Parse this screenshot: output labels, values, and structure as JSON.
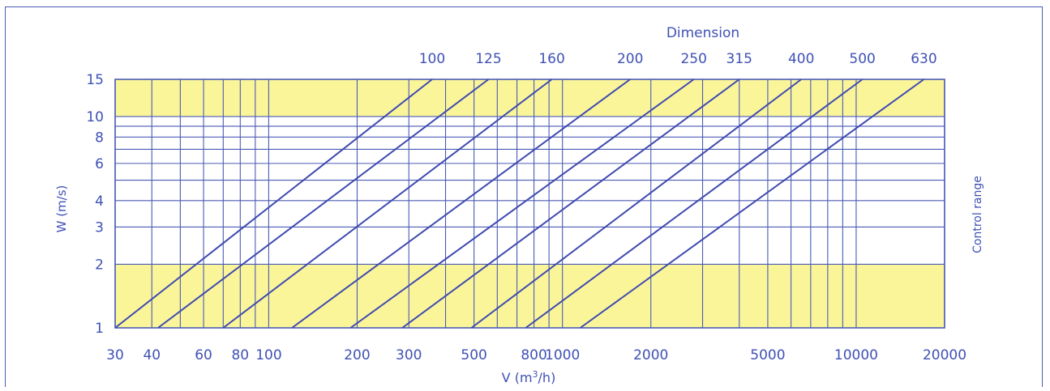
{
  "chart_data": {
    "type": "line",
    "title": "Dimension",
    "xlabel": "V (m³/h)",
    "ylabel": "W (m/s)",
    "right_label": "Control range",
    "x_scale": "log",
    "y_scale": "log",
    "xlim": [
      30,
      20000
    ],
    "ylim": [
      1,
      15
    ],
    "x_ticks": [
      {
        "value": 30,
        "label": "30"
      },
      {
        "value": 40,
        "label": "40"
      },
      {
        "value": 60,
        "label": "60"
      },
      {
        "value": 80,
        "label": "80"
      },
      {
        "value": 100,
        "label": "100"
      },
      {
        "value": 200,
        "label": "200"
      },
      {
        "value": 300,
        "label": "300"
      },
      {
        "value": 500,
        "label": "500"
      },
      {
        "value": 800,
        "label": "800"
      },
      {
        "value": 1000,
        "label": "1000"
      },
      {
        "value": 2000,
        "label": "2000"
      },
      {
        "value": 5000,
        "label": "5000"
      },
      {
        "value": 10000,
        "label": "10000"
      },
      {
        "value": 20000,
        "label": "20000"
      }
    ],
    "y_ticks": [
      {
        "value": 1,
        "label": "1"
      },
      {
        "value": 2,
        "label": "2"
      },
      {
        "value": 3,
        "label": "3"
      },
      {
        "value": 4,
        "label": "4"
      },
      {
        "value": 6,
        "label": "6"
      },
      {
        "value": 8,
        "label": "8"
      },
      {
        "value": 10,
        "label": "10"
      },
      {
        "value": 15,
        "label": "15"
      }
    ],
    "x_gridlines": [
      30,
      40,
      50,
      60,
      70,
      80,
      90,
      100,
      200,
      300,
      400,
      500,
      600,
      700,
      800,
      900,
      1000,
      2000,
      3000,
      4000,
      5000,
      6000,
      7000,
      8000,
      9000,
      10000,
      20000
    ],
    "y_gridlines": [
      1,
      2,
      3,
      4,
      5,
      6,
      7,
      8,
      9,
      10,
      15
    ],
    "shaded_bands": [
      {
        "y_from": 10,
        "y_to": 15,
        "color": "#fbf59a"
      },
      {
        "y_from": 1,
        "y_to": 2,
        "color": "#fbf59a"
      }
    ],
    "series": [
      {
        "name": "100",
        "x": [
          30,
          360
        ],
        "y": [
          1,
          15
        ]
      },
      {
        "name": "125",
        "x": [
          42,
          560
        ],
        "y": [
          1,
          15
        ]
      },
      {
        "name": "160",
        "x": [
          70,
          920
        ],
        "y": [
          1,
          15
        ]
      },
      {
        "name": "200",
        "x": [
          120,
          1700
        ],
        "y": [
          1,
          15
        ]
      },
      {
        "name": "250",
        "x": [
          190,
          2800
        ],
        "y": [
          1,
          15
        ]
      },
      {
        "name": "315",
        "x": [
          285,
          4000
        ],
        "y": [
          1,
          15
        ]
      },
      {
        "name": "400",
        "x": [
          490,
          6500
        ],
        "y": [
          1,
          15
        ]
      },
      {
        "name": "500",
        "x": [
          750,
          10500
        ],
        "y": [
          1,
          15
        ]
      },
      {
        "name": "630",
        "x": [
          1150,
          17000
        ],
        "y": [
          1,
          15
        ]
      }
    ],
    "line_color": "#3f4ab0",
    "grid_color": "#4a5bb4",
    "grid": true
  }
}
